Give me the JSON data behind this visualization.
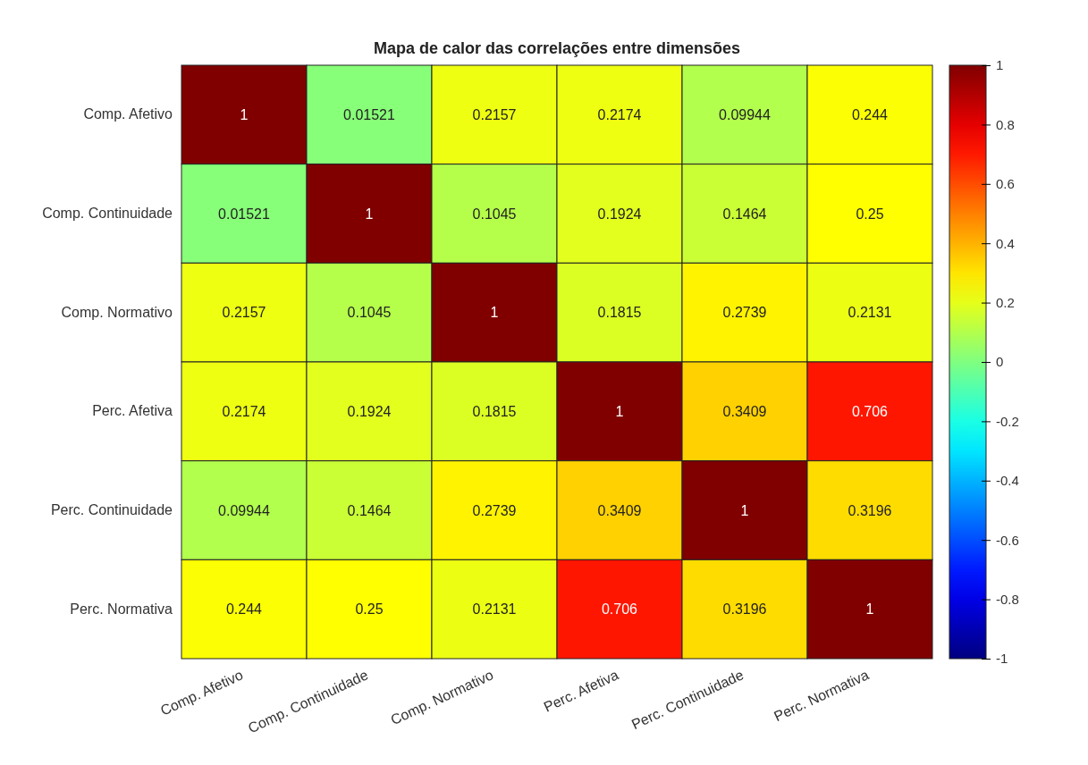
{
  "chart_data": {
    "type": "heatmap",
    "title": "Mapa de calor das correlações entre dimensões",
    "categories": [
      "Comp. Afetivo",
      "Comp. Continuidade",
      "Comp. Normativo",
      "Perc. Afetiva",
      "Perc. Continuidade",
      "Perc. Normativa"
    ],
    "y_categories": [
      "Comp. Afetivo",
      "Comp. Continuidade",
      "Comp. Normativo",
      "Perc. Afetiva",
      "Perc. Continuidade",
      "Perc. Normativa"
    ],
    "cells": [
      [
        1,
        0.01521,
        0.2157,
        0.2174,
        0.09944,
        0.244
      ],
      [
        0.01521,
        1,
        0.1045,
        0.1924,
        0.1464,
        0.25
      ],
      [
        0.2157,
        0.1045,
        1,
        0.1815,
        0.2739,
        0.2131
      ],
      [
        0.2174,
        0.1924,
        0.1815,
        1,
        0.3409,
        0.706
      ],
      [
        0.09944,
        0.1464,
        0.2739,
        0.3409,
        1,
        0.3196
      ],
      [
        0.244,
        0.25,
        0.2131,
        0.706,
        0.3196,
        1
      ]
    ],
    "data_labels": true,
    "clim": [
      -1,
      1
    ],
    "cticks": [
      -1,
      -0.8,
      -0.6,
      -0.4,
      -0.2,
      0,
      0.2,
      0.4,
      0.6,
      0.8,
      1
    ]
  }
}
